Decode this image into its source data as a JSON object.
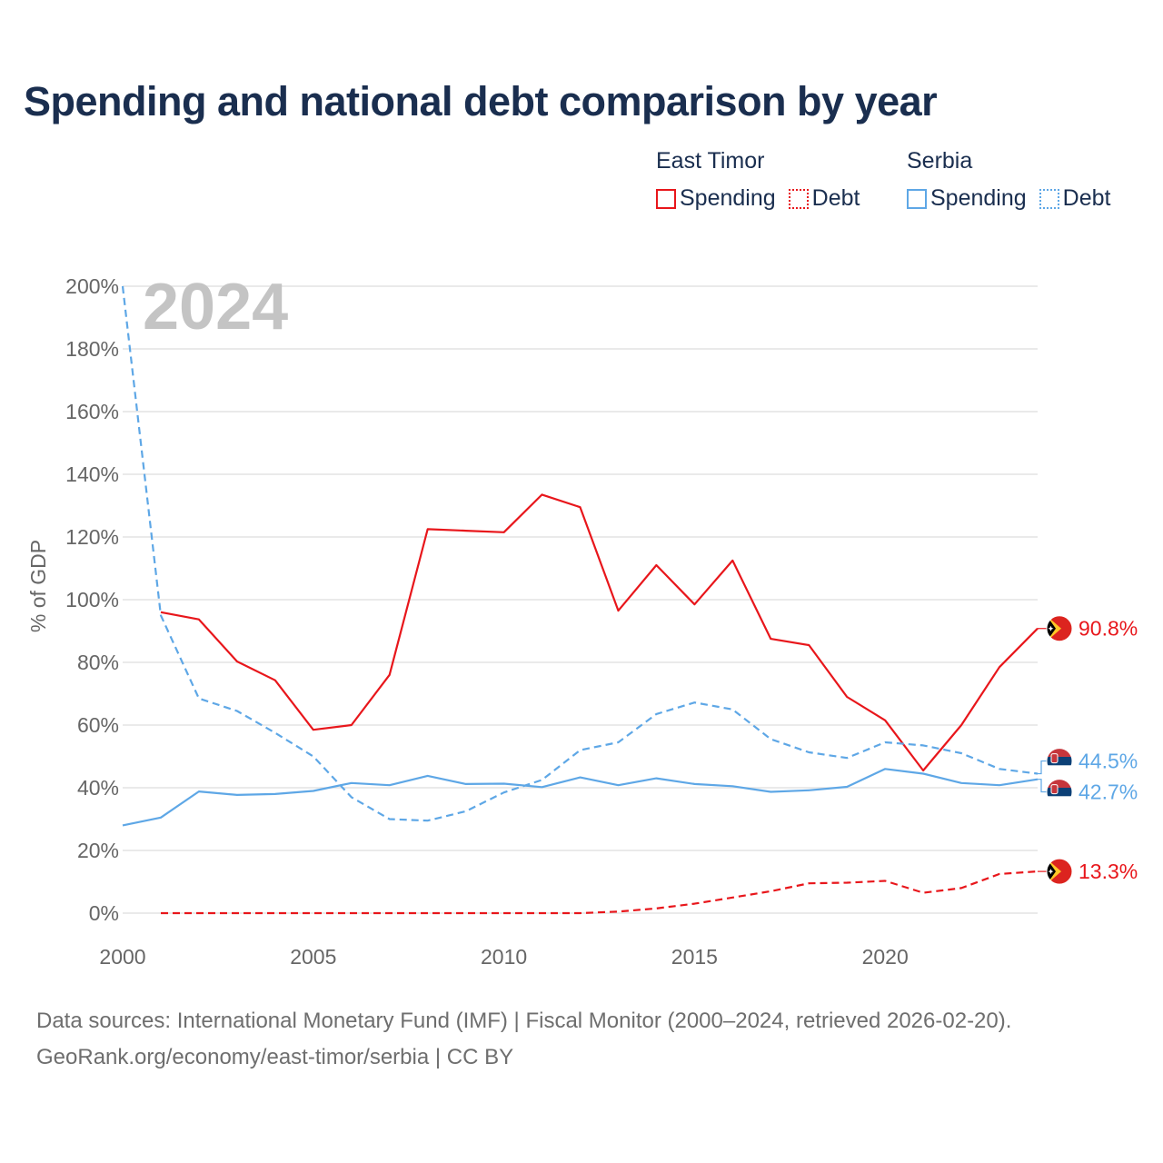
{
  "title": "Spending and national debt comparison by year",
  "legend": {
    "groups": [
      {
        "name": "East Timor",
        "items": [
          {
            "label": "Spending",
            "color": "#e8161b",
            "style": "solid"
          },
          {
            "label": "Debt",
            "color": "#e8161b",
            "style": "dotted"
          }
        ]
      },
      {
        "name": "Serbia",
        "items": [
          {
            "label": "Spending",
            "color": "#5ea7e6",
            "style": "solid"
          },
          {
            "label": "Debt",
            "color": "#5ea7e6",
            "style": "dotted"
          }
        ]
      }
    ]
  },
  "chart_data": {
    "type": "line",
    "year_watermark": "2024",
    "ylabel": "% of GDP",
    "xlabel": "",
    "xlim": [
      2000,
      2024
    ],
    "ylim": [
      0,
      200
    ],
    "x_ticks": [
      2000,
      2005,
      2010,
      2015,
      2020
    ],
    "y_ticks": [
      0,
      20,
      40,
      60,
      80,
      100,
      120,
      140,
      160,
      180,
      200
    ],
    "y_tick_labels": [
      "0%",
      "20%",
      "40%",
      "60%",
      "80%",
      "100%",
      "120%",
      "140%",
      "160%",
      "180%",
      "200%"
    ],
    "grid": true,
    "series": [
      {
        "name": "East Timor Spending",
        "country": "East Timor",
        "metric": "Spending",
        "color": "#e8161b",
        "dash": "solid",
        "x": [
          2001,
          2002,
          2003,
          2004,
          2005,
          2006,
          2007,
          2008,
          2009,
          2010,
          2011,
          2012,
          2013,
          2014,
          2015,
          2016,
          2017,
          2018,
          2019,
          2020,
          2021,
          2022,
          2023,
          2024
        ],
        "values": [
          96,
          93.7,
          80.3,
          74.3,
          58.5,
          60,
          76,
          122.5,
          122,
          121.5,
          133.5,
          129.5,
          96.5,
          111,
          98.5,
          112.5,
          87.5,
          85.5,
          69,
          61.5,
          45.5,
          60,
          78.5,
          90.8
        ],
        "end_label": "90.8%"
      },
      {
        "name": "East Timor Debt",
        "country": "East Timor",
        "metric": "Debt",
        "color": "#e8161b",
        "dash": "dashed",
        "x": [
          2001,
          2002,
          2003,
          2004,
          2005,
          2006,
          2007,
          2008,
          2009,
          2010,
          2011,
          2012,
          2013,
          2014,
          2015,
          2016,
          2017,
          2018,
          2019,
          2020,
          2021,
          2022,
          2023,
          2024
        ],
        "values": [
          0,
          0,
          0,
          0,
          0,
          0,
          0,
          0,
          0,
          0,
          0,
          0,
          0.5,
          1.5,
          3,
          5,
          7,
          9.5,
          9.7,
          10.3,
          6.5,
          8,
          12.5,
          13.3
        ],
        "end_label": "13.3%"
      },
      {
        "name": "Serbia Spending",
        "country": "Serbia",
        "metric": "Spending",
        "color": "#5ea7e6",
        "dash": "solid",
        "x": [
          2000,
          2001,
          2002,
          2003,
          2004,
          2005,
          2006,
          2007,
          2008,
          2009,
          2010,
          2011,
          2012,
          2013,
          2014,
          2015,
          2016,
          2017,
          2018,
          2019,
          2020,
          2021,
          2022,
          2023,
          2024
        ],
        "values": [
          28,
          30.5,
          38.8,
          37.7,
          38,
          39,
          41.5,
          40.8,
          43.8,
          41.2,
          41.3,
          40.2,
          43.3,
          40.8,
          43,
          41.2,
          40.5,
          38.7,
          39.2,
          40.3,
          46,
          44.5,
          41.5,
          40.8,
          42.7
        ],
        "end_label": "42.7%"
      },
      {
        "name": "Serbia Debt",
        "country": "Serbia",
        "metric": "Debt",
        "color": "#5ea7e6",
        "dash": "dashed",
        "x": [
          2000,
          2001,
          2002,
          2003,
          2004,
          2005,
          2006,
          2007,
          2008,
          2009,
          2010,
          2011,
          2012,
          2013,
          2014,
          2015,
          2016,
          2017,
          2018,
          2019,
          2020,
          2021,
          2022,
          2023,
          2024
        ],
        "values": [
          200,
          95,
          68.5,
          64.5,
          57.5,
          50,
          37,
          30,
          29.5,
          32.5,
          38.5,
          42.5,
          52,
          54.5,
          63.5,
          67.2,
          65,
          55.5,
          51.3,
          49.5,
          54.5,
          53.5,
          51,
          46,
          44.5
        ],
        "end_label": "44.5%"
      }
    ]
  },
  "footer": {
    "line1": "Data sources: International Monetary Fund (IMF) | Fiscal Monitor (2000–2024, retrieved 2026-02-20).",
    "line2": "GeoRank.org/economy/east-timor/serbia | CC BY"
  }
}
